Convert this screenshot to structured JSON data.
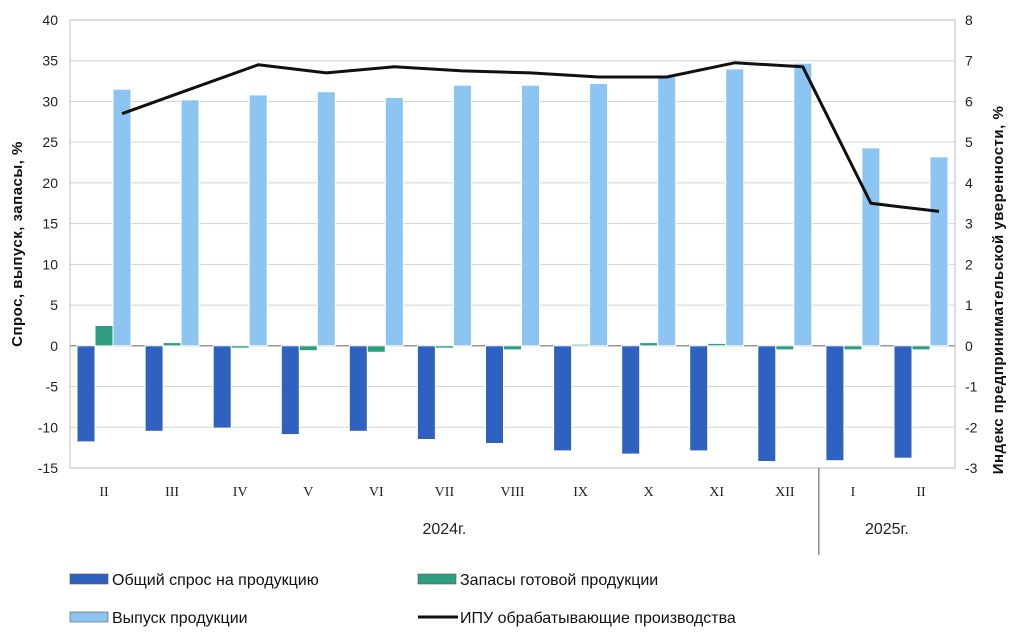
{
  "chart_data": {
    "type": "bar",
    "categories": [
      "II",
      "III",
      "IV",
      "V",
      "VI",
      "VII",
      "VIII",
      "IX",
      "X",
      "XI",
      "XII",
      "I",
      "II"
    ],
    "year_groups": [
      {
        "label": "2024г.",
        "from": 0,
        "to": 10
      },
      {
        "label": "2025г.",
        "from": 11,
        "to": 12
      }
    ],
    "ylabel": "Спрос, выпуск, запасы, %",
    "y2label": "Индекс предпринимательской уверенности, %",
    "ylim": [
      -15,
      40
    ],
    "yticks": [
      -15,
      -10,
      -5,
      0,
      5,
      10,
      15,
      20,
      25,
      30,
      35,
      40
    ],
    "y2lim": [
      -3,
      8
    ],
    "y2ticks": [
      -3,
      -2,
      -1,
      0,
      1,
      2,
      3,
      4,
      5,
      6,
      7,
      8
    ],
    "grid": true,
    "legend_position": "bottom",
    "series": [
      {
        "name": "Общий спрос на продукцию",
        "type": "bar",
        "axis": "left",
        "color": "#2f62c0",
        "values": [
          -11.8,
          -10.5,
          -10.1,
          -10.9,
          -10.5,
          -11.5,
          -12.0,
          -12.9,
          -13.3,
          -12.9,
          -14.2,
          -14.1,
          -13.8
        ]
      },
      {
        "name": "Запасы готовой продукции",
        "type": "bar",
        "axis": "left",
        "color": "#2e9e83",
        "values": [
          2.5,
          0.4,
          -0.3,
          -0.6,
          -0.8,
          -0.3,
          -0.5,
          0.2,
          0.4,
          0.3,
          -0.5,
          -0.5,
          -0.5
        ]
      },
      {
        "name": "Выпуск продукции",
        "type": "bar",
        "axis": "left",
        "color": "#8cc4f2",
        "values": [
          31.5,
          30.2,
          30.8,
          31.2,
          30.5,
          32.0,
          32.0,
          32.2,
          33.0,
          34.0,
          34.7,
          24.3,
          23.2
        ]
      },
      {
        "name": "ИПУ обрабатывающие производства",
        "type": "line",
        "axis": "right",
        "color": "#111111",
        "values": [
          5.7,
          6.3,
          6.9,
          6.7,
          6.85,
          6.75,
          6.7,
          6.6,
          6.6,
          6.95,
          6.85,
          3.5,
          3.3
        ]
      }
    ]
  }
}
